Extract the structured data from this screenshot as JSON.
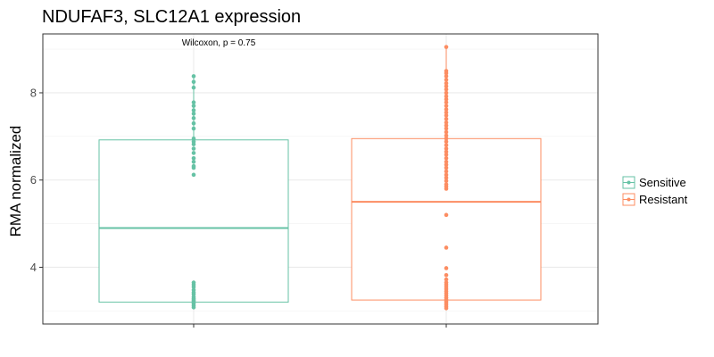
{
  "chart_data": {
    "type": "box",
    "title": "NDUFAF3, SLC12A1 expression",
    "xlabel": "",
    "ylabel": "RMA normalized",
    "yticks": [
      4,
      6,
      8
    ],
    "ylim": [
      2.7,
      9.35
    ],
    "grid": true,
    "legend_position": "right",
    "annotation": "Wilcoxon, p = 0.75",
    "series": [
      {
        "name": "Sensitive",
        "color": "#66c2a5",
        "box": {
          "q1": 3.2,
          "median": 4.9,
          "q3": 6.92,
          "whisker_low": 3.1,
          "whisker_high": 8.4
        },
        "points": [
          8.38,
          8.25,
          8.12,
          7.78,
          7.7,
          7.6,
          7.52,
          7.42,
          7.3,
          7.18,
          6.95,
          6.88,
          6.82,
          6.72,
          6.62,
          6.5,
          6.42,
          6.32,
          6.28,
          6.12,
          3.65,
          3.6,
          3.55,
          3.48,
          3.42,
          3.38,
          3.32,
          3.28,
          3.25,
          3.22,
          3.19,
          3.16,
          3.12,
          3.08
        ]
      },
      {
        "name": "Resistant",
        "color": "#fc8d62",
        "box": {
          "q1": 3.25,
          "median": 5.5,
          "q3": 6.95,
          "whisker_low": 3.05,
          "whisker_high": 9.05
        },
        "points": [
          9.05,
          8.5,
          8.45,
          8.38,
          8.3,
          8.22,
          8.15,
          8.08,
          8.0,
          7.92,
          7.85,
          7.78,
          7.7,
          7.62,
          7.55,
          7.48,
          7.4,
          7.32,
          7.25,
          7.18,
          7.1,
          7.02,
          6.95,
          6.88,
          6.8,
          6.72,
          6.65,
          6.58,
          6.5,
          6.42,
          6.35,
          6.28,
          6.2,
          6.12,
          6.05,
          5.98,
          5.9,
          5.85,
          5.8,
          5.2,
          4.45,
          3.98,
          3.82,
          3.72,
          3.65,
          3.6,
          3.55,
          3.5,
          3.45,
          3.4,
          3.35,
          3.3,
          3.26,
          3.22,
          3.18,
          3.14,
          3.1,
          3.06
        ]
      }
    ]
  }
}
